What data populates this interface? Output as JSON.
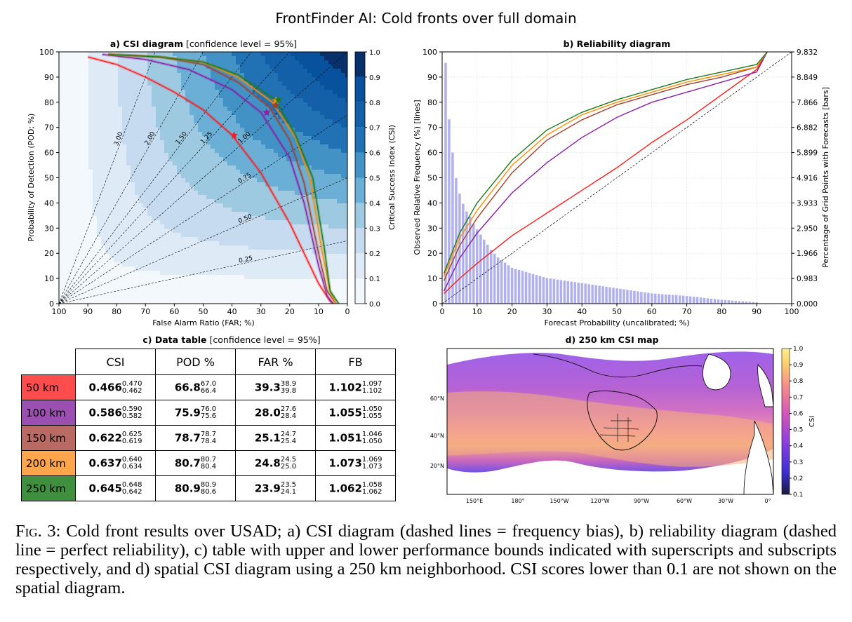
{
  "figure": {
    "suptitle": "FrontFinder AI: Cold fronts over full domain",
    "caption_lead": "Fig. 3:",
    "caption_text": "Cold front results over USAD; a) CSI diagram (dashed lines = frequency bias), b) reliability diagram (dashed line = perfect reliability), c) table with upper and lower performance bounds indicated with superscripts and subscripts respectively, and d) spatial CSI diagram using a 250 km neighborhood. CSI scores lower than 0.1 are not shown on the spatial diagram."
  },
  "colors": {
    "50km": "#ff1a1a",
    "100km": "#8a1fa6",
    "150km": "#a0412d",
    "200km": "#ff8c00",
    "250km": "#1f7a1f",
    "bars": "#b0b0ee"
  },
  "panel_a": {
    "title_bold": "a) CSI diagram",
    "title_rest": "[confidence level = 95%]",
    "xlabel": "False Alarm Ratio (FAR; %)",
    "ylabel": "Probability of Detection (POD; %)",
    "cbar_label": "Critical Success Index (CSI)",
    "x_ticks": [
      "100",
      "90",
      "80",
      "70",
      "60",
      "50",
      "40",
      "30",
      "20",
      "10",
      "0"
    ],
    "y_ticks": [
      "0",
      "10",
      "20",
      "30",
      "40",
      "50",
      "60",
      "70",
      "80",
      "90",
      "100"
    ],
    "cbar_ticks": [
      "0.0",
      "0.1",
      "0.2",
      "0.3",
      "0.4",
      "0.5",
      "0.6",
      "0.7",
      "0.8",
      "0.9",
      "1.0"
    ],
    "bias_labels": [
      "0.25",
      "0.50",
      "0.75",
      "1.00",
      "1.25",
      "1.50",
      "2.00",
      "3.00"
    ]
  },
  "panel_b": {
    "title": "b) Reliability diagram",
    "xlabel": "Forecast Probability (uncalibrated; %)",
    "ylabel": "Observed Relative Frequency (%) [lines]",
    "ylabel_right": "Percentage of Grid Points with Forecasts [bars]",
    "x_ticks": [
      "0",
      "10",
      "20",
      "30",
      "40",
      "50",
      "60",
      "70",
      "80",
      "90",
      "100"
    ],
    "y_ticks": [
      "0",
      "10",
      "20",
      "30",
      "40",
      "50",
      "60",
      "70",
      "80",
      "90",
      "100"
    ],
    "y_right_ticks": [
      "0.000",
      "0.983",
      "1.966",
      "2.950",
      "3.933",
      "4.916",
      "5.899",
      "6.882",
      "7.866",
      "8.849",
      "9.832"
    ]
  },
  "panel_c": {
    "title_bold": "c) Data table",
    "title_rest": "[confidence level = 95%]",
    "columns": [
      "CSI",
      "POD %",
      "FAR %",
      "FB"
    ],
    "rows": [
      {
        "label": "50 km",
        "cells": [
          [
            "0.466",
            "0.470",
            "0.462"
          ],
          [
            "66.8",
            "67.0",
            "66.4"
          ],
          [
            "39.3",
            "38.9",
            "39.8"
          ],
          [
            "1.102",
            "1.097",
            "1.102"
          ]
        ]
      },
      {
        "label": "100 km",
        "cells": [
          [
            "0.586",
            "0.590",
            "0.582"
          ],
          [
            "75.9",
            "76.0",
            "75.6"
          ],
          [
            "28.0",
            "27.6",
            "28.4"
          ],
          [
            "1.055",
            "1.050",
            "1.055"
          ]
        ]
      },
      {
        "label": "150 km",
        "cells": [
          [
            "0.622",
            "0.625",
            "0.619"
          ],
          [
            "78.7",
            "78.7",
            "78.4"
          ],
          [
            "25.1",
            "24.7",
            "25.4"
          ],
          [
            "1.051",
            "1.046",
            "1.050"
          ]
        ]
      },
      {
        "label": "200 km",
        "cells": [
          [
            "0.637",
            "0.640",
            "0.634"
          ],
          [
            "80.7",
            "80.7",
            "80.4"
          ],
          [
            "24.8",
            "24.5",
            "25.0"
          ],
          [
            "1.073",
            "1.069",
            "1.073"
          ]
        ]
      },
      {
        "label": "250 km",
        "cells": [
          [
            "0.645",
            "0.648",
            "0.642"
          ],
          [
            "80.9",
            "80.9",
            "80.6"
          ],
          [
            "23.9",
            "23.5",
            "24.1"
          ],
          [
            "1.062",
            "1.058",
            "1.062"
          ]
        ]
      }
    ],
    "row_colors": [
      "#ff4d4d",
      "#9b4fb0",
      "#b86a63",
      "#ffa64d",
      "#3f8f3f"
    ]
  },
  "panel_d": {
    "title": "d) 250 km CSI map",
    "cbar_label": "CSI",
    "lat_ticks": [
      "60°N",
      "40°N",
      "20°N"
    ],
    "lon_ticks": [
      "150°E",
      "180°",
      "150°W",
      "120°W",
      "90°W",
      "60°W",
      "30°W",
      "0°"
    ],
    "cbar_ticks": [
      "0.1",
      "0.2",
      "0.3",
      "0.4",
      "0.5",
      "0.6",
      "0.7",
      "0.8",
      "0.9",
      "1.0"
    ]
  },
  "chart_data": [
    {
      "type": "line",
      "title": "a) CSI diagram [confidence level = 95%]",
      "xlabel": "False Alarm Ratio (FAR; %)",
      "ylabel": "Probability of Detection (POD; %)",
      "xlim": [
        100,
        0
      ],
      "ylim": [
        0,
        100
      ],
      "series": [
        {
          "name": "50 km",
          "x": [
            90,
            80,
            70,
            60,
            50,
            40,
            30,
            20,
            15,
            10,
            6,
            5
          ],
          "y": [
            98,
            95,
            90,
            84,
            77,
            67,
            52,
            32,
            20,
            8,
            1,
            0
          ]
        },
        {
          "name": "100 km",
          "x": [
            85,
            70,
            55,
            40,
            30,
            20,
            15,
            10,
            7,
            5
          ],
          "y": [
            99,
            97,
            93,
            85,
            76,
            58,
            40,
            15,
            3,
            0
          ]
        },
        {
          "name": "150 km",
          "x": [
            83,
            65,
            50,
            38,
            27,
            20,
            15,
            10,
            7,
            4
          ],
          "y": [
            99,
            98,
            95,
            88,
            78,
            65,
            48,
            20,
            5,
            0
          ]
        },
        {
          "name": "200 km",
          "x": [
            83,
            65,
            50,
            38,
            26,
            18,
            13,
            9,
            6,
            4
          ],
          "y": [
            99,
            98,
            96,
            90,
            80,
            66,
            50,
            22,
            5,
            0
          ]
        },
        {
          "name": "250 km",
          "x": [
            83,
            65,
            50,
            38,
            25,
            18,
            12,
            8,
            6,
            3
          ],
          "y": [
            99,
            98,
            96,
            91,
            81,
            67,
            50,
            22,
            5,
            0
          ]
        }
      ],
      "points": [
        {
          "name": "50 km",
          "far": 39.3,
          "pod": 66.8
        },
        {
          "name": "100 km",
          "far": 28.0,
          "pod": 75.9
        },
        {
          "name": "150 km",
          "far": 25.1,
          "pod": 78.7
        },
        {
          "name": "200 km",
          "far": 24.8,
          "pod": 80.7
        },
        {
          "name": "250 km",
          "far": 23.9,
          "pod": 80.9
        }
      ],
      "bias_lines": [
        0.25,
        0.5,
        0.75,
        1.0,
        1.25,
        1.5,
        2.0,
        3.0
      ],
      "colorbar": {
        "label": "Critical Success Index (CSI)",
        "range": [
          0,
          1
        ],
        "levels": 10
      }
    },
    {
      "type": "line",
      "title": "b) Reliability diagram",
      "xlabel": "Forecast Probability (uncalibrated; %)",
      "ylabel": "Observed Relative Frequency (%) [lines]",
      "ylabel_right": "Percentage of Grid Points with Forecasts [bars]",
      "xlim": [
        0,
        100
      ],
      "ylim": [
        0,
        100
      ],
      "y_right_lim": [
        0,
        9.832
      ],
      "series": [
        {
          "name": "50 km",
          "x": [
            0.5,
            5,
            10,
            20,
            30,
            40,
            50,
            60,
            70,
            80,
            90,
            93
          ],
          "y": [
            4,
            10,
            16,
            27,
            36,
            45,
            54,
            64,
            73,
            83,
            93,
            100
          ]
        },
        {
          "name": "100 km",
          "x": [
            0.5,
            5,
            10,
            20,
            30,
            40,
            50,
            60,
            70,
            80,
            90,
            93
          ],
          "y": [
            5,
            18,
            28,
            44,
            56,
            66,
            74,
            80,
            84,
            88,
            92,
            100
          ]
        },
        {
          "name": "150 km",
          "x": [
            0.5,
            5,
            10,
            20,
            30,
            40,
            50,
            60,
            70,
            80,
            90,
            93
          ],
          "y": [
            9,
            23,
            34,
            52,
            65,
            73,
            79,
            83,
            87,
            90,
            94,
            100
          ]
        },
        {
          "name": "200 km",
          "x": [
            0.5,
            5,
            10,
            20,
            30,
            40,
            50,
            60,
            70,
            80,
            90,
            93
          ],
          "y": [
            11,
            26,
            37,
            55,
            67,
            75,
            80,
            84,
            88,
            91,
            94,
            100
          ]
        },
        {
          "name": "250 km",
          "x": [
            0.5,
            5,
            10,
            20,
            30,
            40,
            50,
            60,
            70,
            80,
            90,
            93
          ],
          "y": [
            12,
            28,
            40,
            57,
            69,
            76,
            81,
            85,
            89,
            92,
            95,
            100
          ]
        }
      ],
      "bars": {
        "x": [
          1,
          2,
          3,
          4,
          5,
          6,
          7,
          8,
          9,
          10,
          12,
          14,
          16,
          18,
          20,
          25,
          30,
          40,
          50,
          60,
          70,
          80,
          90
        ],
        "y": [
          9.4,
          7.2,
          5.9,
          4.9,
          4.3,
          3.9,
          3.6,
          3.4,
          3.1,
          2.9,
          2.5,
          2.1,
          1.8,
          1.6,
          1.4,
          1.2,
          1.0,
          0.8,
          0.6,
          0.4,
          0.3,
          0.15,
          0.05
        ]
      }
    },
    {
      "type": "table",
      "title": "c) Data table [confidence level = 95%]",
      "columns": [
        "CSI",
        "POD %",
        "FAR %",
        "FB"
      ],
      "rows": [
        "50 km",
        "100 km",
        "150 km",
        "200 km",
        "250 km"
      ]
    },
    {
      "type": "heatmap",
      "title": "d) 250 km CSI map",
      "colorbar": {
        "label": "CSI",
        "range": [
          0.1,
          1.0
        ]
      }
    }
  ]
}
